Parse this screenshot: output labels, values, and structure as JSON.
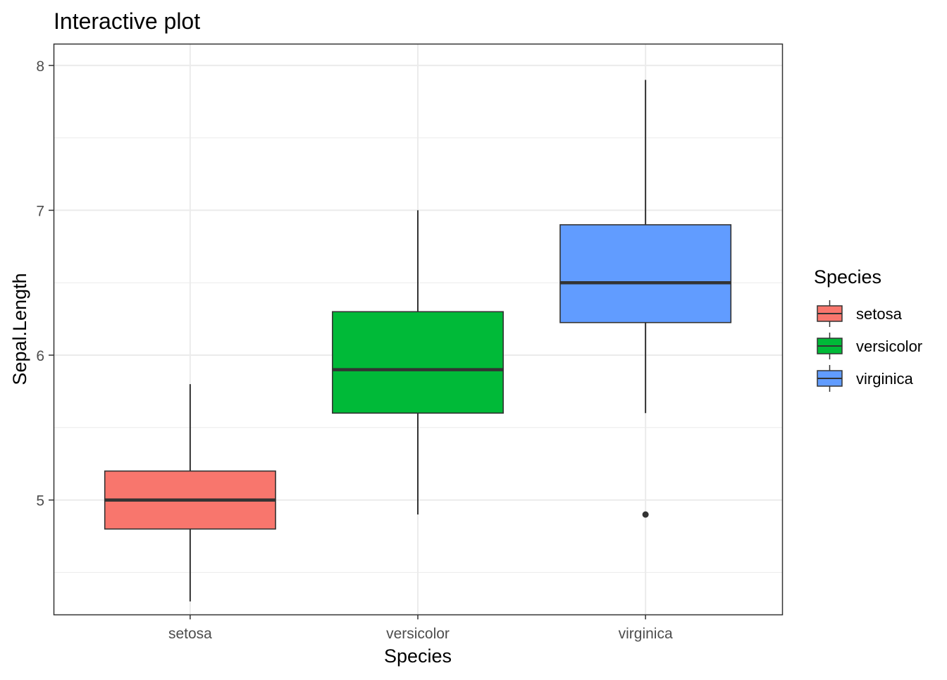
{
  "chart_data": {
    "type": "boxplot",
    "title": "Interactive plot",
    "xlabel": "Species",
    "ylabel": "Sepal.Length",
    "categories": [
      "setosa",
      "versicolor",
      "virginica"
    ],
    "ylim": [
      4.21,
      8.15
    ],
    "yticks": [
      5,
      6,
      7,
      8
    ],
    "grid": true,
    "legend": {
      "title": "Species",
      "position": "right",
      "entries": [
        "setosa",
        "versicolor",
        "virginica"
      ]
    },
    "series": [
      {
        "category": "setosa",
        "min": 4.3,
        "q1": 4.8,
        "median": 5.0,
        "q3": 5.2,
        "max": 5.8,
        "outliers": [],
        "color": "#F8766D"
      },
      {
        "category": "versicolor",
        "min": 4.9,
        "q1": 5.6,
        "median": 5.9,
        "q3": 6.3,
        "max": 7.0,
        "outliers": [],
        "color": "#00BA38"
      },
      {
        "category": "virginica",
        "min": 5.6,
        "q1": 6.225,
        "median": 6.5,
        "q3": 6.9,
        "max": 7.9,
        "outliers": [
          4.9
        ],
        "color": "#619CFF"
      }
    ]
  }
}
